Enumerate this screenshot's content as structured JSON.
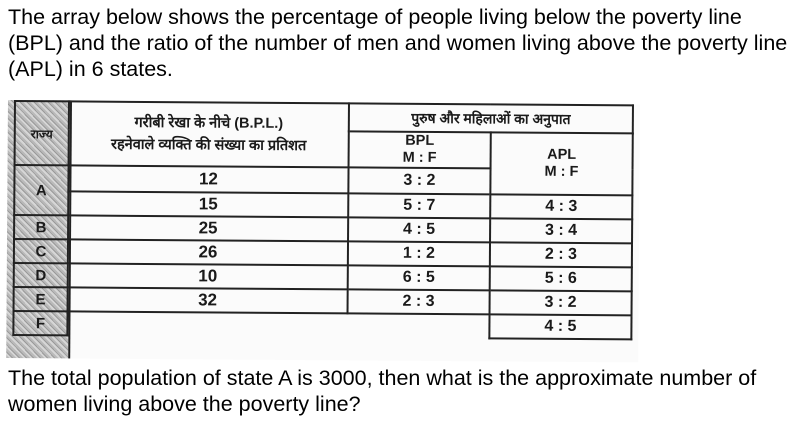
{
  "question_intro": "The array below shows the percentage of people living below the poverty line (BPL) and the ratio of the number of men and women living above the poverty line (APL) in 6 states.",
  "table": {
    "header_state": "राज्य",
    "header_bpl_percent_line1": "गरीबी रेखा के नीचे (B.P.L.)",
    "header_bpl_percent_line2": "रहनेवाले व्यक्ति की संख्या का प्रतिशत",
    "header_ratio": "पुरुष और महिलाओं का अनुपात",
    "header_bpl": "BPL",
    "header_bpl_mf": "M : F",
    "header_apl": "APL",
    "header_apl_mf": "M : F",
    "rows": [
      {
        "state": "A",
        "bpl_percent": "12",
        "bpl_ratio": "3 : 2",
        "apl_ratio": "4 : 3"
      },
      {
        "state": "B",
        "bpl_percent": "15",
        "bpl_ratio": "5 : 7",
        "apl_ratio": "3 : 4"
      },
      {
        "state": "C",
        "bpl_percent": "25",
        "bpl_ratio": "4 : 5",
        "apl_ratio": "2 : 3"
      },
      {
        "state": "D",
        "bpl_percent": "26",
        "bpl_ratio": "1 : 2",
        "apl_ratio": "5 : 6"
      },
      {
        "state": "E",
        "bpl_percent": "10",
        "bpl_ratio": "6 : 5",
        "apl_ratio": "3 : 2"
      },
      {
        "state": "F",
        "bpl_percent": "32",
        "bpl_ratio": "2 : 3",
        "apl_ratio": "4 : 5"
      }
    ]
  },
  "question_text": "The total population of state A is 3000, then what is the approximate number of women living above the poverty line?"
}
